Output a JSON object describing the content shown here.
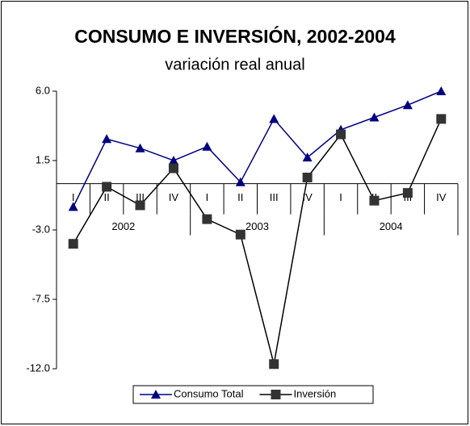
{
  "chart_data": {
    "type": "line",
    "title": "CONSUMO E INVERSIÓN, 2002-2004",
    "subtitle": "variación real anual",
    "categories": [
      "I",
      "II",
      "III",
      "IV",
      "I",
      "II",
      "III",
      "IV",
      "I",
      "II",
      "III",
      "IV"
    ],
    "category_groups": [
      "2002",
      "2003",
      "2004"
    ],
    "series": [
      {
        "name": "Consumo Total",
        "color": "#000080",
        "marker": "triangle",
        "values": [
          -1.5,
          2.9,
          2.3,
          1.5,
          2.4,
          0.1,
          4.2,
          1.7,
          3.5,
          4.3,
          5.1,
          6.0
        ]
      },
      {
        "name": "Inversión",
        "color": "#333333",
        "marker": "square",
        "values": [
          -3.9,
          -0.2,
          -1.4,
          1.0,
          -2.3,
          -3.3,
          -11.7,
          0.4,
          3.2,
          -1.1,
          -0.6,
          4.2
        ]
      }
    ],
    "ylim": [
      -12.0,
      6.0
    ],
    "yticks": [
      {
        "value": 6.0,
        "label": "6.0"
      },
      1.5,
      {
        "value": -3.0,
        "label": "-3.0"
      },
      -7.5,
      {
        "value": -12.0,
        "label": "-12.0"
      }
    ],
    "grid": false,
    "legend": "bottom"
  }
}
